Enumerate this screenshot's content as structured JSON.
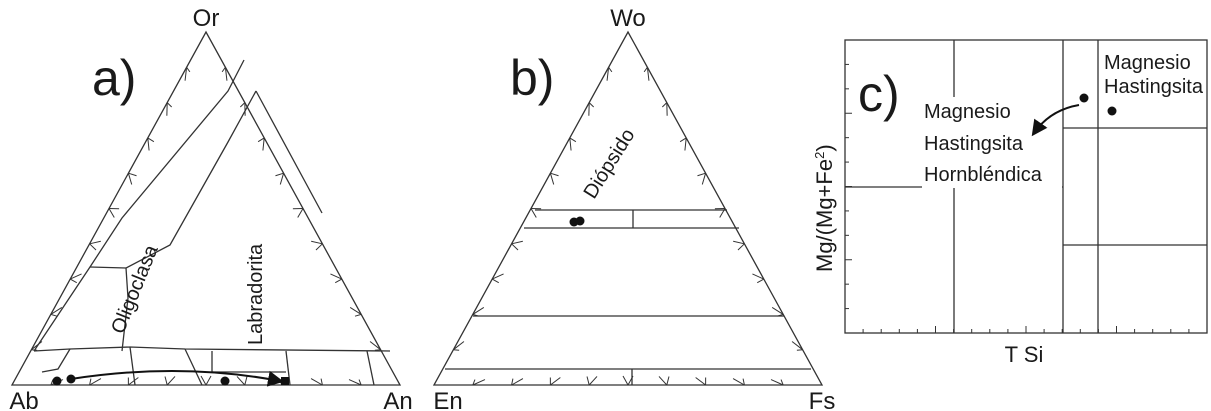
{
  "panel_a": {
    "panel_label": "a)",
    "vertex_top": "Or",
    "vertex_left": "Ab",
    "vertex_right": "An",
    "field_oligoclasa": "Oligoclasa",
    "field_labradorita": "Labradorita"
  },
  "panel_b": {
    "panel_label": "b)",
    "vertex_top": "Wo",
    "vertex_left": "En",
    "vertex_right": "Fs",
    "field_diopsido": "Diópsido"
  },
  "panel_c": {
    "panel_label": "c)",
    "x_label": "T Si",
    "y_label_main": "Mg/(Mg+Fe",
    "y_label_sup": "2",
    "y_label_end": ")",
    "field_upper": [
      "Magnesio",
      "Hastingsita"
    ],
    "field_lower": [
      "Magnesio",
      "Hastingsita",
      "Hornbléndica"
    ]
  },
  "colors": {
    "line": "#333333",
    "point": "#111111"
  }
}
